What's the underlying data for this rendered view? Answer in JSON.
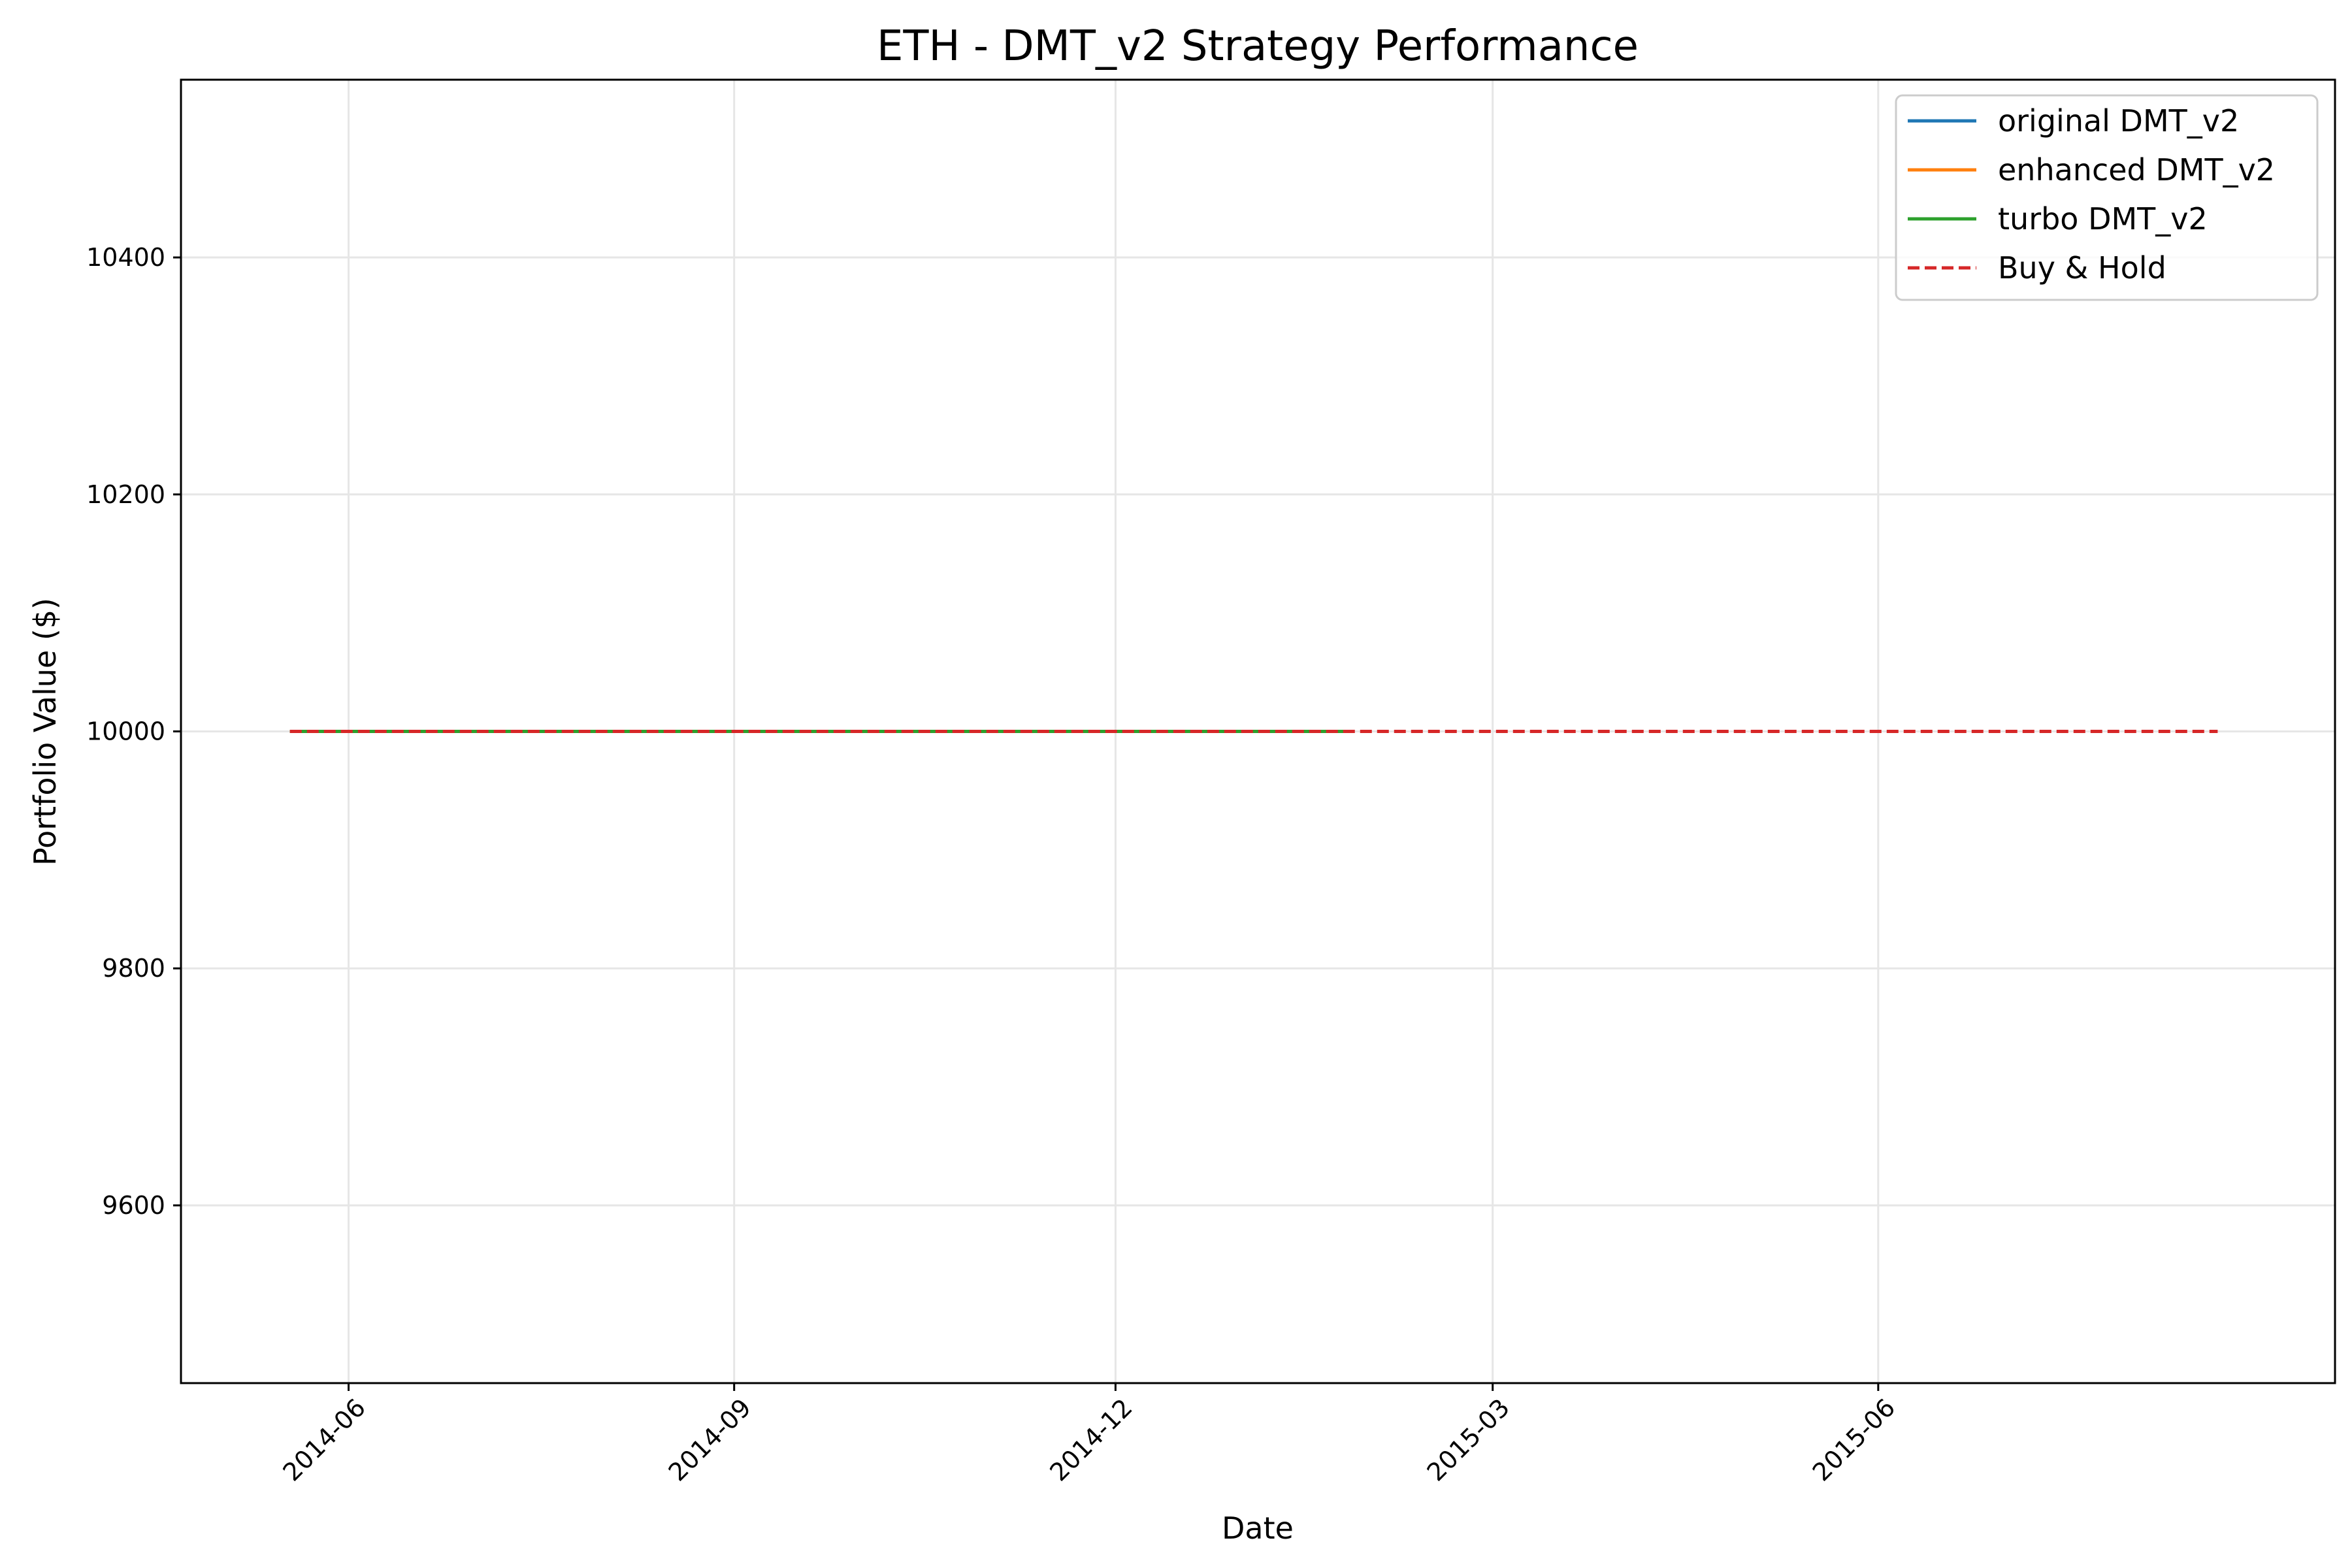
{
  "chart_data": {
    "type": "line",
    "title": "ETH - DMT_v2 Strategy Performance",
    "xlabel": "Date",
    "ylabel": "Portfolio Value ($)",
    "x_axis_kind": "date",
    "xlim": [
      "2014-04-22",
      "2015-09-18"
    ],
    "ylim": [
      9450,
      10550
    ],
    "x_ticks": [
      {
        "date": "2014-06-01",
        "label": "2014-06"
      },
      {
        "date": "2014-09-01",
        "label": "2014-09"
      },
      {
        "date": "2014-12-01",
        "label": "2014-12"
      },
      {
        "date": "2015-03-01",
        "label": "2015-03"
      },
      {
        "date": "2015-06-01",
        "label": "2015-06"
      }
    ],
    "y_ticks": [
      9600,
      9800,
      10000,
      10200,
      10400
    ],
    "grid": true,
    "legend_position": "top-right",
    "series": [
      {
        "name": "original DMT_v2",
        "color": "#1f77b4",
        "style": "solid",
        "points": [
          {
            "x": "2014-05-18",
            "y": 10000
          },
          {
            "x": "2015-01-27",
            "y": 10000
          }
        ]
      },
      {
        "name": "enhanced DMT_v2",
        "color": "#ff7f0e",
        "style": "solid",
        "points": [
          {
            "x": "2014-05-18",
            "y": 10000
          },
          {
            "x": "2015-01-27",
            "y": 10000
          }
        ]
      },
      {
        "name": "turbo DMT_v2",
        "color": "#2ca02c",
        "style": "solid",
        "points": [
          {
            "x": "2014-05-18",
            "y": 10000
          },
          {
            "x": "2015-01-27",
            "y": 10000
          }
        ]
      },
      {
        "name": "Buy & Hold",
        "color": "#d62728",
        "style": "dashed",
        "points": [
          {
            "x": "2014-05-18",
            "y": 10000
          },
          {
            "x": "2015-08-21",
            "y": 10000
          }
        ]
      }
    ]
  }
}
